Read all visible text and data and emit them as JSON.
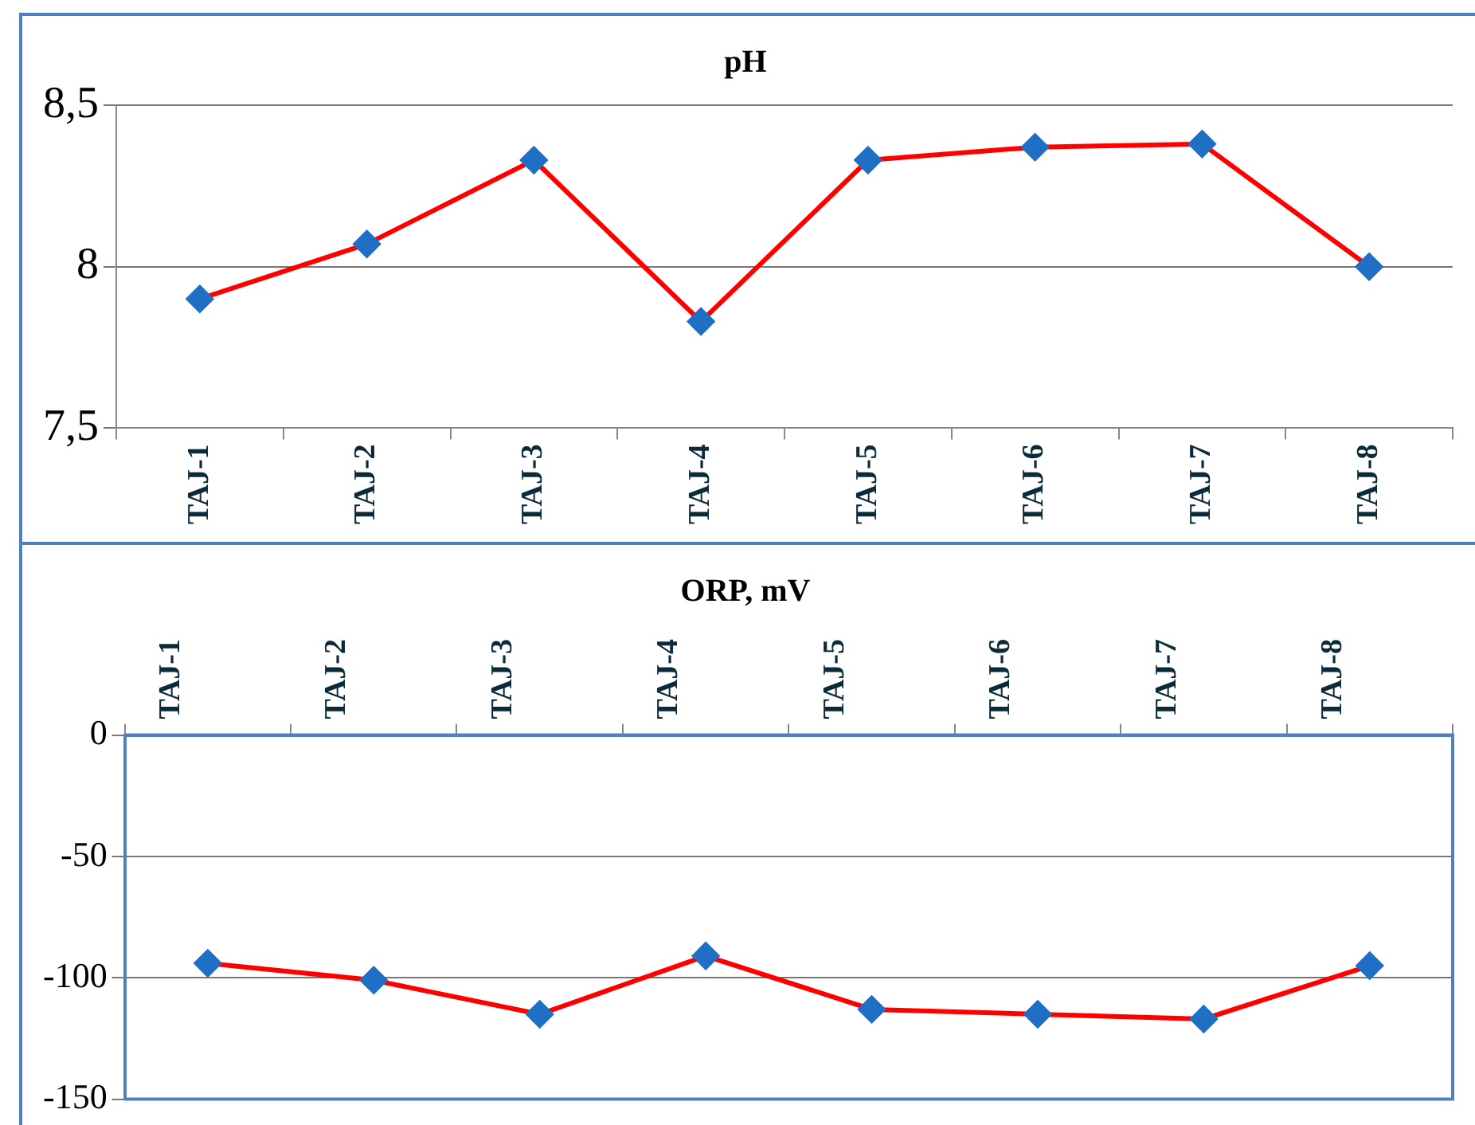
{
  "chart_data": [
    {
      "type": "line",
      "title": "pH",
      "categories": [
        "TAJ-1",
        "TAJ-2",
        "TAJ-3",
        "TAJ-4",
        "TAJ-5",
        "TAJ-6",
        "TAJ-7",
        "TAJ-8"
      ],
      "series": [
        {
          "color": "#ff0000",
          "values": [
            7.9,
            8.07,
            8.33,
            7.83,
            8.33,
            8.37,
            8.38,
            8.0
          ]
        }
      ],
      "ylim": [
        7.5,
        8.5
      ],
      "yticks": [
        {
          "value": 7.5,
          "label": "7,5"
        },
        8,
        {
          "value": 8.5,
          "label": "8,5"
        }
      ],
      "grid": "y",
      "legend": false,
      "marker": "diamond",
      "line_style": "solid"
    },
    {
      "type": "line",
      "title": "ORP, mV",
      "categories": [
        "TAJ-1",
        "TAJ-2",
        "TAJ-3",
        "TAJ-4",
        "TAJ-5",
        "TAJ-6",
        "TAJ-7",
        "TAJ-8"
      ],
      "series": [
        {
          "color": "#ff0000",
          "values": [
            -94,
            -101,
            -115,
            -91,
            -113,
            -115,
            -117,
            -95
          ]
        }
      ],
      "ylim": [
        -150,
        0
      ],
      "yticks": [
        -150,
        -100,
        -50,
        0
      ],
      "grid": "y",
      "legend": false,
      "marker": "diamond",
      "line_style": "solid"
    }
  ]
}
